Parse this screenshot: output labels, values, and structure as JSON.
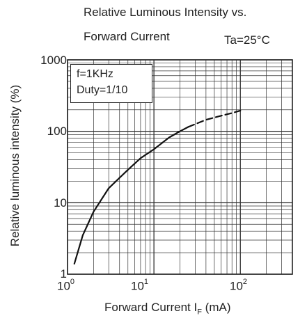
{
  "chart_data": {
    "type": "line",
    "title_line1": "Relative Luminous Intensity vs.",
    "title_line2": "Forward Current",
    "condition": "Ta=25°C",
    "xlabel_main": "Forward Current  I",
    "xlabel_sub": "F",
    "xlabel_unit": " (mA)",
    "ylabel": "Relative luminous intensity (%)",
    "x_scale": "log",
    "y_scale": "log",
    "xlim": [
      1,
      400
    ],
    "ylim": [
      1,
      1000
    ],
    "grid": true,
    "legend_box": [
      "f=1KHz",
      "Duty=1/10"
    ],
    "x_tick_labels": [
      {
        "base": "10",
        "exp": "0"
      },
      {
        "base": "10",
        "exp": "1"
      },
      {
        "base": "10",
        "exp": "2"
      }
    ],
    "y_tick_labels": [
      "1",
      "10",
      "100",
      "1000"
    ],
    "series": [
      {
        "style": "solid",
        "x": [
          1.2,
          1.5,
          2,
          3,
          5,
          7,
          10,
          15,
          20,
          25
        ],
        "y": [
          1.4,
          3.5,
          7.5,
          16,
          29,
          42,
          56,
          82,
          100,
          115
        ]
      },
      {
        "style": "dashed",
        "x": [
          25,
          40,
          60,
          80,
          100
        ],
        "y": [
          115,
          145,
          165,
          180,
          195
        ]
      }
    ]
  }
}
